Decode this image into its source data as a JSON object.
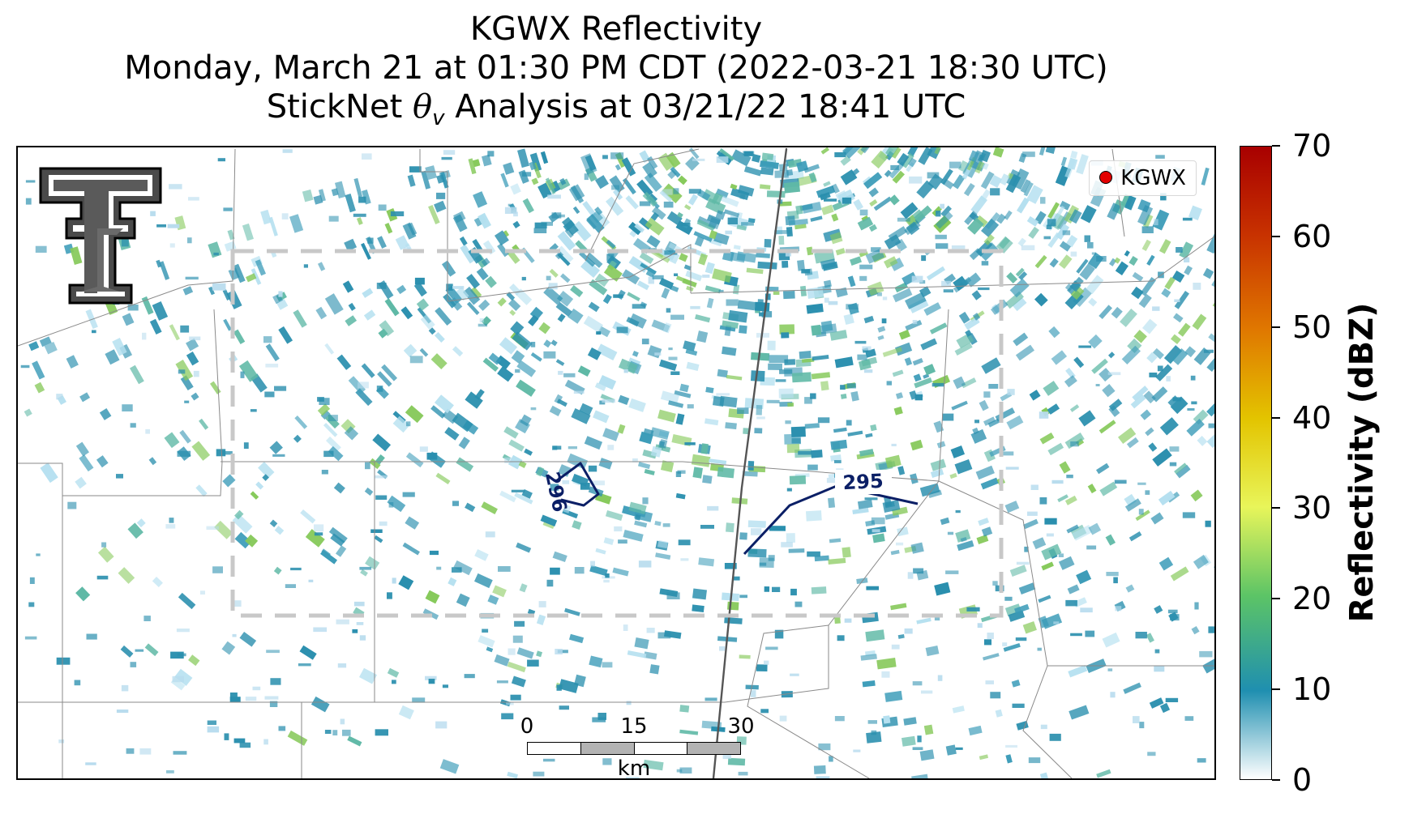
{
  "title": {
    "line1": "KGWX Reflectivity",
    "line2": "Monday, March 21 at 01:30 PM CDT (2022-03-21 18:30 UTC)",
    "line3_prefix": "StickNet ",
    "line3_theta": "θ",
    "line3_sub": "v",
    "line3_suffix": " Analysis at 03/21/22 18:41 UTC"
  },
  "legend": {
    "label": "KGWX",
    "marker_color": "#e30000"
  },
  "contours": [
    {
      "label": "296",
      "color": "#0b1f66"
    },
    {
      "label": "295",
      "color": "#0b1f66"
    }
  ],
  "scalebar": {
    "ticks": [
      "0",
      "15",
      "30"
    ],
    "unit": "km"
  },
  "colorbar": {
    "title": "Reflectivity (dBZ)",
    "min": 0,
    "max": 70,
    "ticks": [
      "0",
      "10",
      "20",
      "30",
      "40",
      "50",
      "60",
      "70"
    ],
    "colors": [
      "#ffffff",
      "#1f8fb0",
      "#5cc466",
      "#e8f55a",
      "#e3c400",
      "#e07800",
      "#c83200",
      "#a80000"
    ]
  },
  "logo": {
    "name": "Texas Tech double-T logo"
  },
  "colors": {
    "radar_primary": "#2a8fae",
    "radar_secondary": "#5fb9a6",
    "county_lines": "#888888",
    "domain_box": "#c8c8c8"
  }
}
